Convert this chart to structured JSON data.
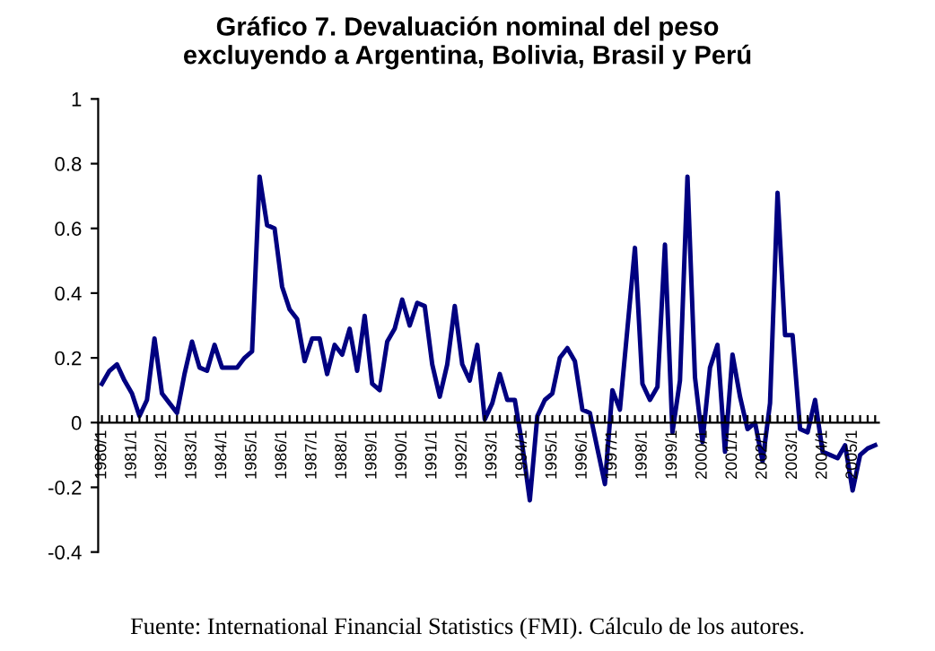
{
  "chart_data": {
    "type": "line",
    "title": "Gráfico 7. Devaluación nominal del peso\nexcluyendo a Argentina, Bolivia, Brasil y Perú",
    "categories": [
      "1980/1",
      null,
      null,
      null,
      "1981/1",
      null,
      null,
      null,
      "1982/1",
      null,
      null,
      null,
      "1983/1",
      null,
      null,
      null,
      "1984/1",
      null,
      null,
      null,
      "1985/1",
      null,
      null,
      null,
      "1986/1",
      null,
      null,
      null,
      "1987/1",
      null,
      null,
      null,
      "1988/1",
      null,
      null,
      null,
      "1989/1",
      null,
      null,
      null,
      "1990/1",
      null,
      null,
      null,
      "1991/1",
      null,
      null,
      null,
      "1992/1",
      null,
      null,
      null,
      "1993/1",
      null,
      null,
      null,
      "1994/1",
      null,
      null,
      null,
      "1995/1",
      null,
      null,
      null,
      "1996/1",
      null,
      null,
      null,
      "1997/1",
      null,
      null,
      null,
      "1998/1",
      null,
      null,
      null,
      "1999/1",
      null,
      null,
      null,
      "2000/1",
      null,
      null,
      null,
      "2001/1",
      null,
      null,
      null,
      "2002/1",
      null,
      null,
      null,
      "2003/1",
      null,
      null,
      null,
      "2004/1",
      null,
      null,
      null,
      "2005/1",
      null,
      null,
      null
    ],
    "series": [
      {
        "color": "#000080",
        "values": [
          0.12,
          0.16,
          0.18,
          0.13,
          0.09,
          0.02,
          0.07,
          0.26,
          0.09,
          0.06,
          0.03,
          0.15,
          0.25,
          0.17,
          0.16,
          0.24,
          0.17,
          0.17,
          0.17,
          0.2,
          0.22,
          0.76,
          0.61,
          0.6,
          0.42,
          0.35,
          0.32,
          0.19,
          0.26,
          0.26,
          0.15,
          0.24,
          0.21,
          0.29,
          0.16,
          0.33,
          0.12,
          0.1,
          0.25,
          0.29,
          0.38,
          0.3,
          0.37,
          0.36,
          0.18,
          0.08,
          0.18,
          0.36,
          0.18,
          0.13,
          0.24,
          0.01,
          0.06,
          0.15,
          0.07,
          0.07,
          -0.07,
          -0.24,
          0.02,
          0.07,
          0.09,
          0.2,
          0.23,
          0.19,
          0.04,
          0.03,
          -0.08,
          -0.19,
          0.1,
          0.04,
          0.29,
          0.54,
          0.12,
          0.07,
          0.11,
          0.55,
          -0.03,
          0.13,
          0.76,
          0.14,
          -0.06,
          0.17,
          0.24,
          -0.09,
          0.21,
          0.08,
          -0.02,
          0.0,
          -0.12,
          0.06,
          0.71,
          0.27,
          0.27,
          -0.02,
          -0.03,
          0.07,
          -0.09,
          -0.1,
          -0.11,
          -0.07,
          -0.21,
          -0.1,
          -0.08,
          -0.07
        ]
      }
    ],
    "ylim": [
      -0.4,
      1
    ],
    "yticks": [
      -0.4,
      -0.2,
      0,
      0.2,
      0.4,
      0.6,
      0.8,
      1
    ],
    "grid": false,
    "marker": "none",
    "line_style": "solid",
    "annotations": [
      "Fuente: International Financial Statistics (FMI). Cálculo de los autores."
    ]
  }
}
